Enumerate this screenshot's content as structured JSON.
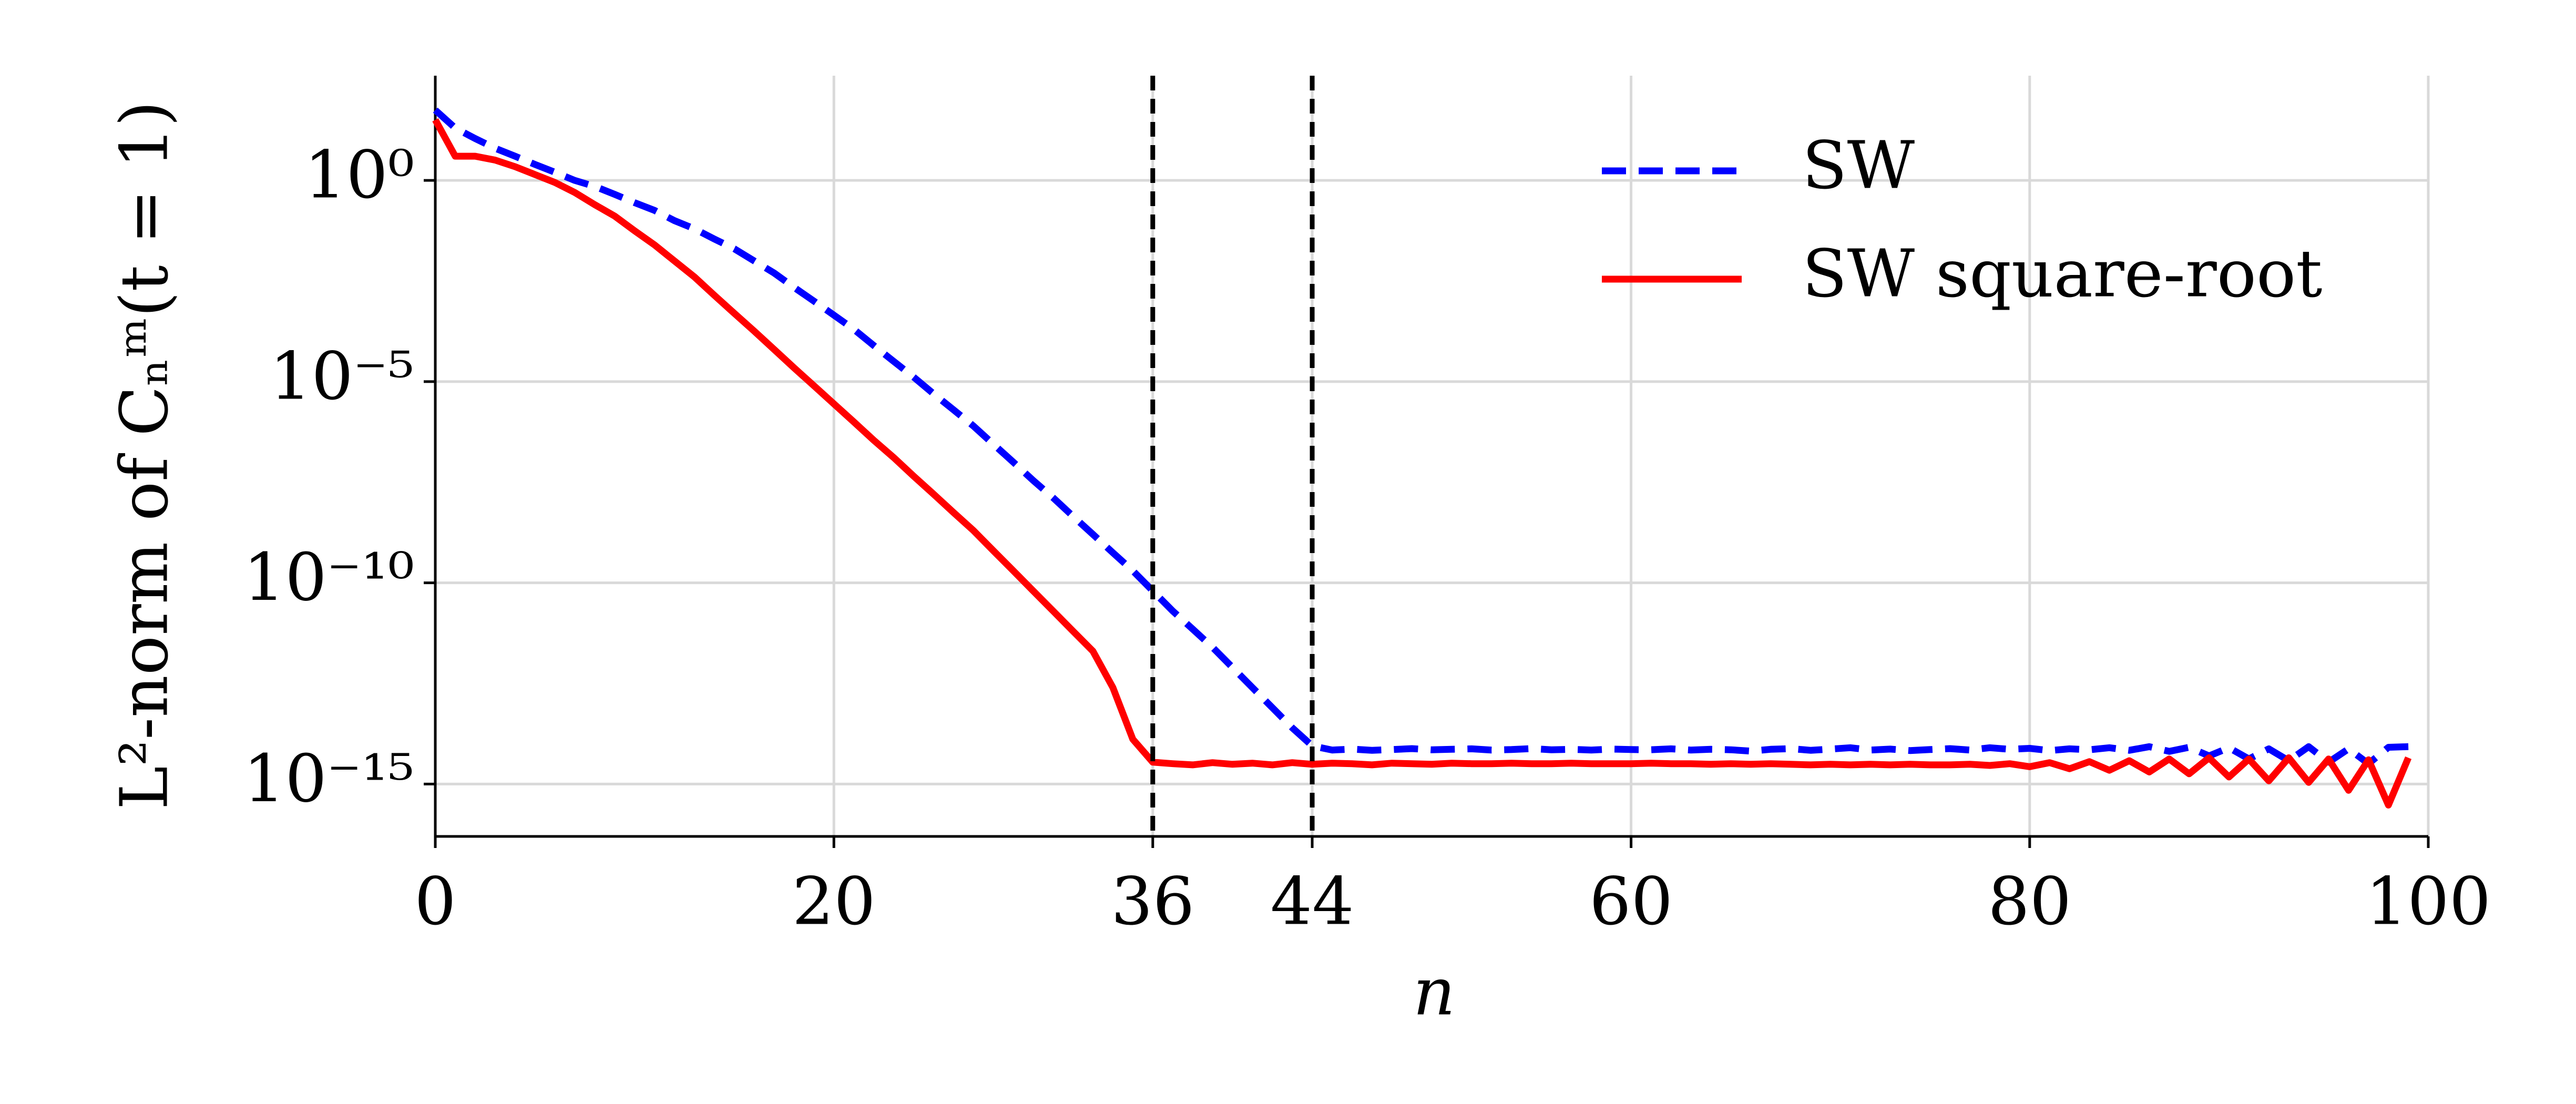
{
  "chart_data": {
    "type": "line",
    "x_label": "n",
    "y_label": "L²-norm of Cₙᵐ(t = 1)",
    "x": [
      0,
      1,
      2,
      3,
      4,
      5,
      6,
      7,
      8,
      9,
      10,
      11,
      12,
      13,
      14,
      15,
      16,
      17,
      18,
      19,
      20,
      21,
      22,
      23,
      24,
      25,
      26,
      27,
      28,
      29,
      30,
      31,
      32,
      33,
      34,
      35,
      36,
      37,
      38,
      39,
      40,
      41,
      42,
      43,
      44,
      45,
      46,
      47,
      48,
      49,
      50,
      51,
      52,
      53,
      54,
      55,
      56,
      57,
      58,
      59,
      60,
      61,
      62,
      63,
      64,
      65,
      66,
      67,
      68,
      69,
      70,
      71,
      72,
      73,
      74,
      75,
      76,
      77,
      78,
      79,
      80,
      81,
      82,
      83,
      84,
      85,
      86,
      87,
      88,
      89,
      90,
      91,
      92,
      93,
      94,
      95,
      96,
      97,
      98,
      99
    ],
    "series": [
      {
        "name": "SW",
        "color": "#0000ff",
        "dash": true,
        "values": [
          56,
          20,
          11,
          6.3,
          4.0,
          2.5,
          1.6,
          1.0,
          0.71,
          0.45,
          0.28,
          0.18,
          0.1,
          0.063,
          0.035,
          0.02,
          0.01,
          0.005,
          0.0022,
          0.001,
          0.00045,
          0.0002,
          7.9e-05,
          3.2e-05,
          1.3e-05,
          5e-06,
          2e-06,
          7.9e-07,
          2.8e-07,
          1e-07,
          3.5e-08,
          1.3e-08,
          4.5e-09,
          1.6e-09,
          5.6e-10,
          2e-10,
          6.3e-11,
          2e-11,
          7.1e-12,
          2.5e-12,
          7.9e-13,
          2.5e-13,
          7.9e-14,
          2.5e-14,
          8.9e-15,
          7e-15,
          7.4e-15,
          6.9e-15,
          7.2e-15,
          7.6e-15,
          7.1e-15,
          7.3e-15,
          7.5e-15,
          7e-15,
          7.2e-15,
          7.6e-15,
          7.1e-15,
          7.3e-15,
          7e-15,
          7.4e-15,
          7.2e-15,
          7.1e-15,
          7.5e-15,
          7e-15,
          7.3e-15,
          7.1e-15,
          6.6e-15,
          7.3e-15,
          7.6e-15,
          6.9e-15,
          7.4e-15,
          8e-15,
          7e-15,
          7.4e-15,
          6.8e-15,
          7.2e-15,
          7.6e-15,
          7e-15,
          8e-15,
          7.3e-15,
          7.7e-15,
          6.8e-15,
          7.5e-15,
          7.1e-15,
          8e-15,
          6.9e-15,
          8.5e-15,
          6.5e-15,
          8.2e-15,
          5e-15,
          8e-15,
          4.2e-15,
          7.5e-15,
          3.8e-15,
          8.5e-15,
          3.5e-15,
          7.5e-15,
          3.2e-15,
          8.2e-15,
          8.5e-15
        ]
      },
      {
        "name": "SW square-root",
        "color": "#ff0000",
        "dash": false,
        "values": [
          32,
          4.0,
          4.0,
          3.2,
          2.2,
          1.4,
          0.89,
          0.5,
          0.25,
          0.13,
          0.056,
          0.025,
          0.01,
          0.004,
          0.0014,
          0.0005,
          0.00018,
          6.3e-05,
          2.2e-05,
          7.9e-06,
          2.8e-06,
          1e-06,
          3.5e-07,
          1.3e-07,
          4.5e-08,
          1.6e-08,
          5.6e-09,
          2e-09,
          6.3e-10,
          2e-10,
          6.3e-11,
          2e-11,
          6.3e-12,
          2e-12,
          2.5e-13,
          1.3e-14,
          3.5e-15,
          3.2e-15,
          3e-15,
          3.4e-15,
          3.1e-15,
          3.3e-15,
          3e-15,
          3.4e-15,
          3.1e-15,
          3.3e-15,
          3.2e-15,
          3e-15,
          3.3e-15,
          3.2e-15,
          3.1e-15,
          3.3e-15,
          3.2e-15,
          3.2e-15,
          3.3e-15,
          3.2e-15,
          3.2e-15,
          3.3e-15,
          3.2e-15,
          3.2e-15,
          3.2e-15,
          3.3e-15,
          3.2e-15,
          3.2e-15,
          3.1e-15,
          3.2e-15,
          3.1e-15,
          3.2e-15,
          3.1e-15,
          3e-15,
          3.1e-15,
          3e-15,
          3.1e-15,
          3e-15,
          3.1e-15,
          3e-15,
          3e-15,
          3.1e-15,
          2.9e-15,
          3.2e-15,
          2.7e-15,
          3.4e-15,
          2.4e-15,
          3.6e-15,
          2.2e-15,
          3.8e-15,
          2e-15,
          4.2e-15,
          1.8e-15,
          4.5e-15,
          1.5e-15,
          4.2e-15,
          1.2e-15,
          4.5e-15,
          1.1e-15,
          4.2e-15,
          7e-16,
          4e-15,
          3e-16,
          4.5e-15
        ]
      }
    ],
    "vlines": [
      36,
      44
    ],
    "xlim": [
      0,
      100
    ],
    "xticks": [
      0,
      20,
      36,
      44,
      60,
      80,
      100
    ],
    "ylim": [
      5e-17,
      400
    ],
    "yscale": "log",
    "yticks": [
      {
        "value": 1e-15,
        "label": "10⁻¹⁵"
      },
      {
        "value": 1e-10,
        "label": "10⁻¹⁰"
      },
      {
        "value": 1e-05,
        "label": "10⁻⁵"
      },
      {
        "value": 1,
        "label": "10⁰"
      }
    ],
    "grid": true,
    "legend": "upper right"
  }
}
